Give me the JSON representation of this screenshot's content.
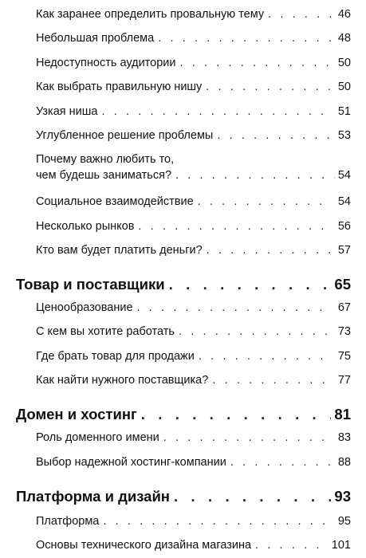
{
  "entries": [
    {
      "title": "Как заранее определить провальную тему",
      "page": "46"
    },
    {
      "title": "Небольшая проблема",
      "page": "48"
    },
    {
      "title": "Недоступность аудитории",
      "page": "50"
    },
    {
      "title": "Как выбрать правильную нишу",
      "page": "50"
    },
    {
      "title": "Узкая ниша",
      "page": "51"
    },
    {
      "title": "Углубленное решение проблемы",
      "page": "53"
    },
    {
      "title_line1": "Почему важно любить то,",
      "title_line2": "чем будешь заниматься?",
      "page": "54"
    },
    {
      "title": "Социальное взаимодействие",
      "page": "54"
    },
    {
      "title": "Несколько рынков",
      "page": "56"
    },
    {
      "title": "Кто вам будет платить деньги?",
      "page": "57"
    }
  ],
  "chapters": [
    {
      "title": "Товар и поставщики",
      "page": "65",
      "items": [
        {
          "title": "Ценообразование",
          "page": "67"
        },
        {
          "title": "С кем вы хотите работать",
          "page": "73"
        },
        {
          "title": "Где брать товар для продажи",
          "page": "75"
        },
        {
          "title": "Как найти нужного поставщика?",
          "page": "77"
        }
      ]
    },
    {
      "title": "Домен и хостинг",
      "page": "81",
      "items": [
        {
          "title": "Роль доменного имени",
          "page": "83"
        },
        {
          "title": "Выбор надежной хостинг-компании",
          "page": "88"
        }
      ]
    },
    {
      "title": "Платформа и дизайн",
      "page": "93",
      "items": [
        {
          "title": "Платформа",
          "page": "95"
        },
        {
          "title": "Основы технического дизайна магазина",
          "page": "101"
        }
      ]
    }
  ]
}
